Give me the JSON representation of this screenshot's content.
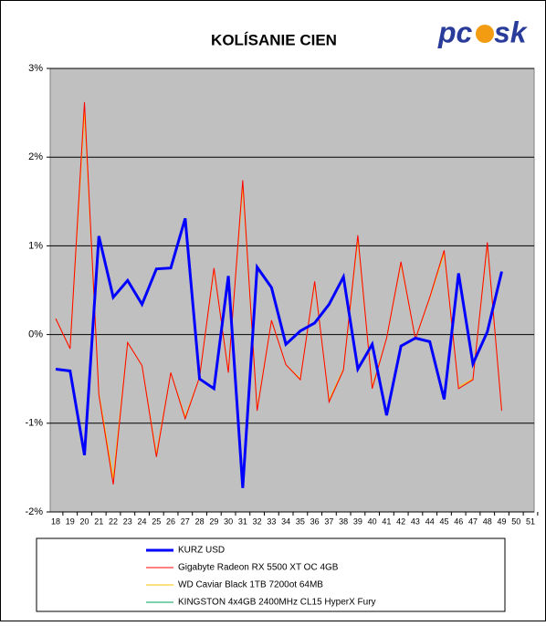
{
  "chart_data": {
    "type": "line",
    "title": "KOLÍSANIE CIEN",
    "logo": [
      "pc",
      "sk"
    ],
    "categories": [
      "18",
      "19",
      "20",
      "21",
      "22",
      "23",
      "24",
      "25",
      "26",
      "27",
      "28",
      "29",
      "30",
      "31",
      "32",
      "33",
      "34",
      "35",
      "36",
      "37",
      "38",
      "39",
      "40",
      "41",
      "42",
      "43",
      "44",
      "45",
      "46",
      "47",
      "48",
      "49",
      "50",
      "51"
    ],
    "ylim": [
      -2,
      3
    ],
    "yticks": [
      {
        "value": -2,
        "label": "-2%"
      },
      {
        "value": -1,
        "label": "-1%"
      },
      {
        "value": 0,
        "label": "0%"
      },
      {
        "value": 1,
        "label": "1%"
      },
      {
        "value": 2,
        "label": "2%"
      },
      {
        "value": 3,
        "label": "3%"
      }
    ],
    "grid": true,
    "series": [
      {
        "name": "KURZ USD",
        "color": "#0000ff",
        "width": 3,
        "values": [
          -0.39,
          -0.41,
          -1.36,
          1.11,
          0.42,
          0.61,
          0.34,
          0.74,
          0.75,
          1.31,
          -0.5,
          -0.61,
          0.66,
          -1.73,
          0.76,
          0.53,
          -0.11,
          0.04,
          0.13,
          0.34,
          0.65,
          -0.39,
          -0.11,
          -0.91,
          -0.13,
          -0.04,
          -0.08,
          -0.73,
          0.69,
          -0.33,
          0.03,
          0.71,
          null,
          null
        ]
      },
      {
        "name": "Gigabyte Radeon RX 5500 XT OC 4GB",
        "color": "#ff0000",
        "width": 1,
        "values": [
          0.18,
          -0.16,
          2.62,
          -0.68,
          -1.69,
          -0.09,
          -0.35,
          -1.38,
          -0.43,
          -0.95,
          -0.48,
          0.75,
          -0.43,
          1.74,
          -0.86,
          0.16,
          -0.34,
          -0.51,
          0.6,
          -0.76,
          -0.4,
          1.12,
          -0.61,
          -0.04,
          0.82,
          -0.05,
          0.42,
          0.95,
          -0.61,
          -0.51,
          1.04,
          -0.86,
          null,
          null
        ]
      },
      {
        "name": "WD Caviar Black 1TB 7200ot 64MB",
        "color": "#ffc000",
        "width": 1,
        "values": [
          0.18,
          -0.16,
          2.52,
          -0.66,
          -1.62,
          -0.09,
          -0.35,
          -1.35,
          -0.43,
          -0.93,
          -0.48,
          0.73,
          -0.41,
          1.68,
          -0.84,
          0.16,
          -0.34,
          -0.5,
          0.58,
          -0.74,
          -0.39,
          1.08,
          -0.59,
          -0.04,
          0.8,
          -0.05,
          0.41,
          0.92,
          -0.59,
          -0.5,
          1.01,
          -0.84,
          null,
          null
        ]
      },
      {
        "name": "KINGSTON 4x4GB 2400MHz CL15 HyperX Fury",
        "color": "#00a060",
        "width": 1,
        "values": [
          null,
          null,
          null,
          null,
          null,
          null,
          null,
          null,
          null,
          null,
          null,
          null,
          null,
          null,
          null,
          null,
          null,
          null,
          null,
          null,
          null,
          null,
          null,
          null,
          null,
          null,
          null,
          null,
          null,
          null,
          null,
          null,
          null,
          null
        ]
      }
    ]
  }
}
